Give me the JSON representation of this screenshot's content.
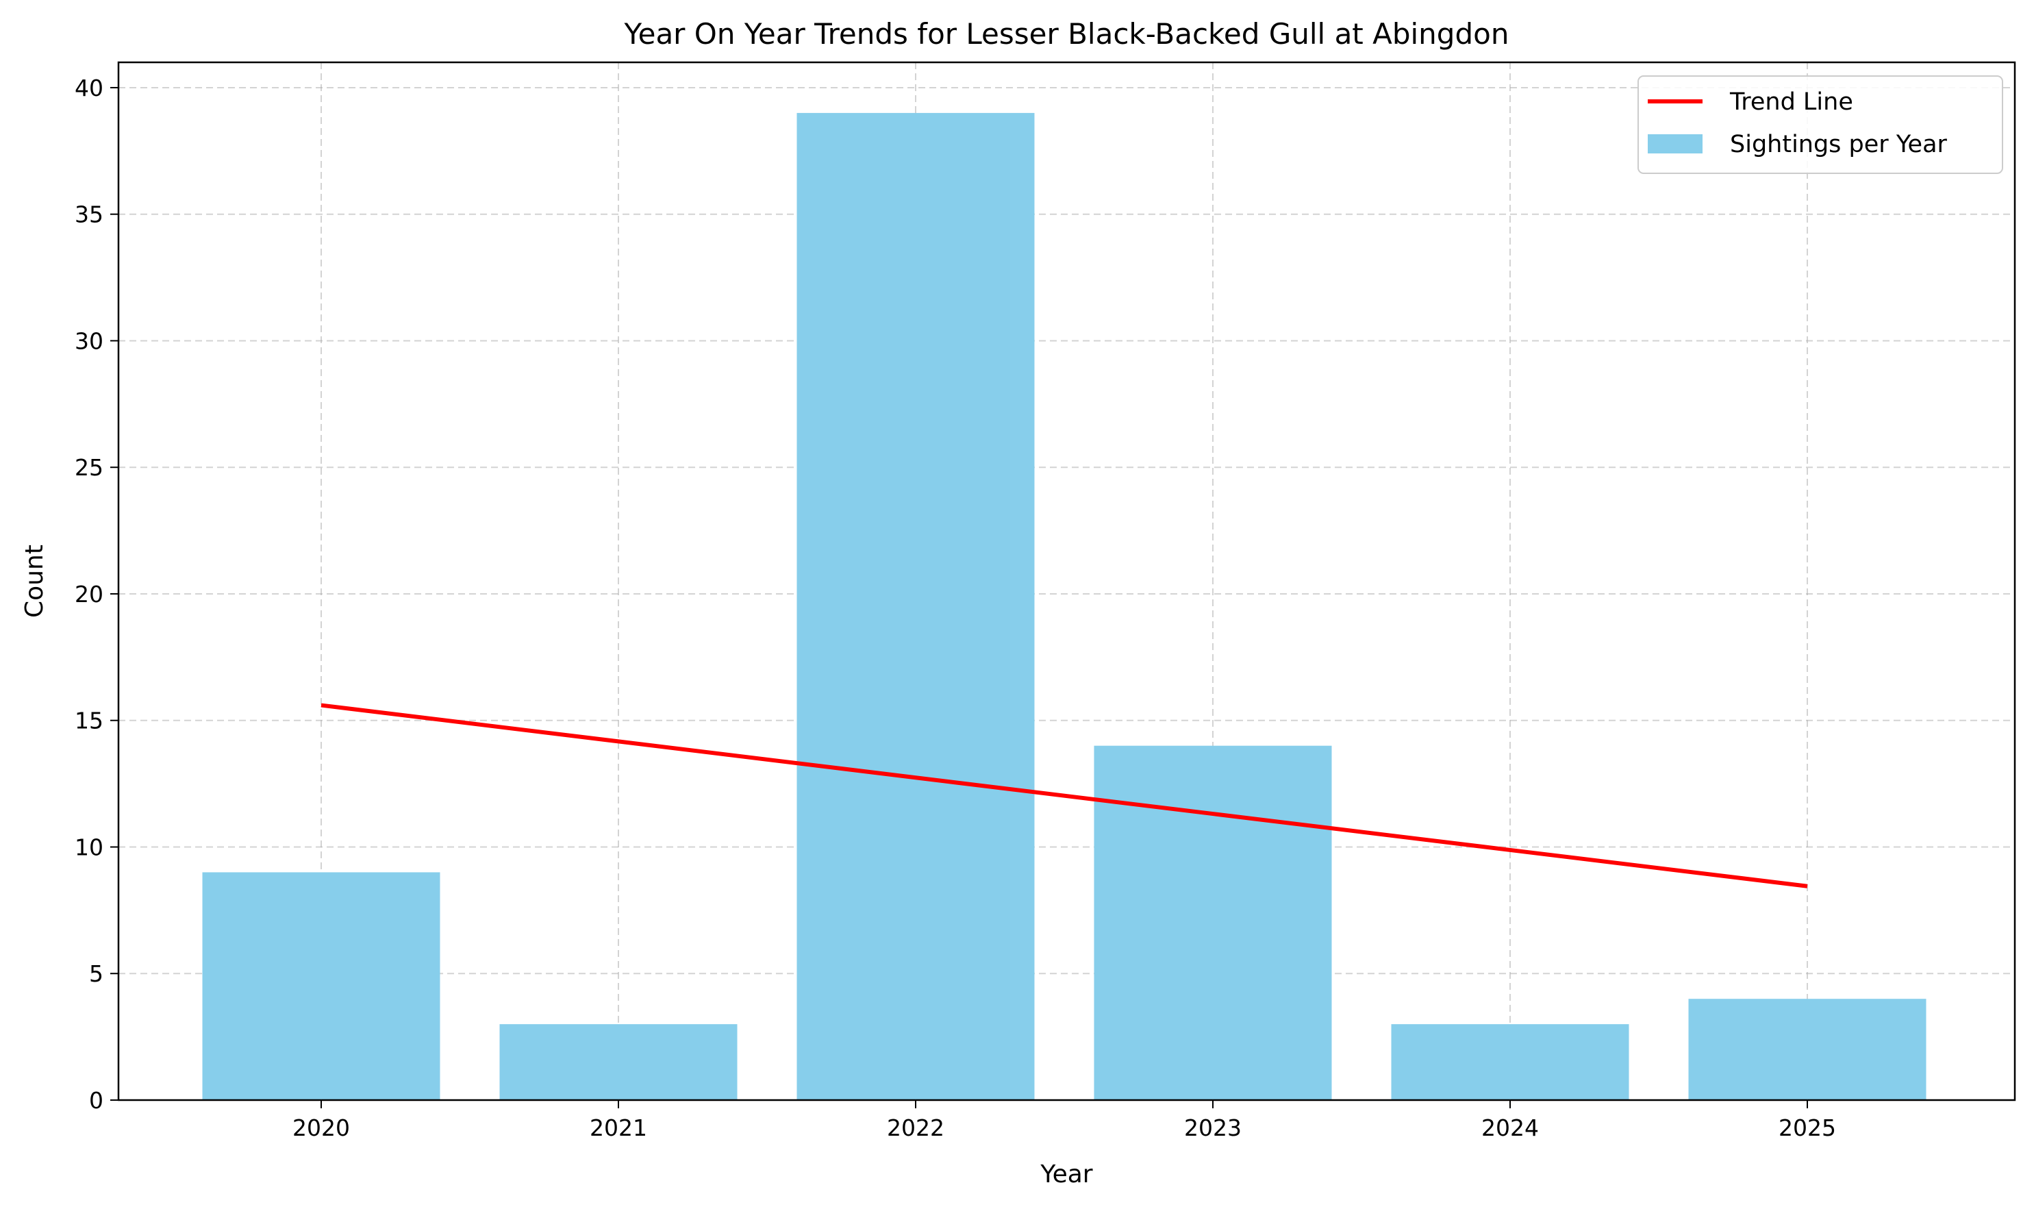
{
  "chart_data": {
    "type": "bar",
    "title": "Year On Year Trends for Lesser Black-Backed Gull at Abingdon",
    "xlabel": "Year",
    "ylabel": "Count",
    "categories": [
      "2020",
      "2021",
      "2022",
      "2023",
      "2024",
      "2025"
    ],
    "series": [
      {
        "name": "Sightings per Year",
        "kind": "bar",
        "color": "#87CEEB",
        "values": [
          9,
          3,
          39,
          14,
          3,
          4
        ]
      },
      {
        "name": "Trend Line",
        "kind": "line",
        "color": "#FF0000",
        "values": [
          15.6,
          14.17,
          12.74,
          11.31,
          9.88,
          8.45
        ]
      }
    ],
    "ylim": [
      0,
      41
    ],
    "yticks": [
      0,
      5,
      10,
      15,
      20,
      25,
      30,
      35,
      40
    ],
    "grid": true,
    "legend_position": "upper right"
  }
}
